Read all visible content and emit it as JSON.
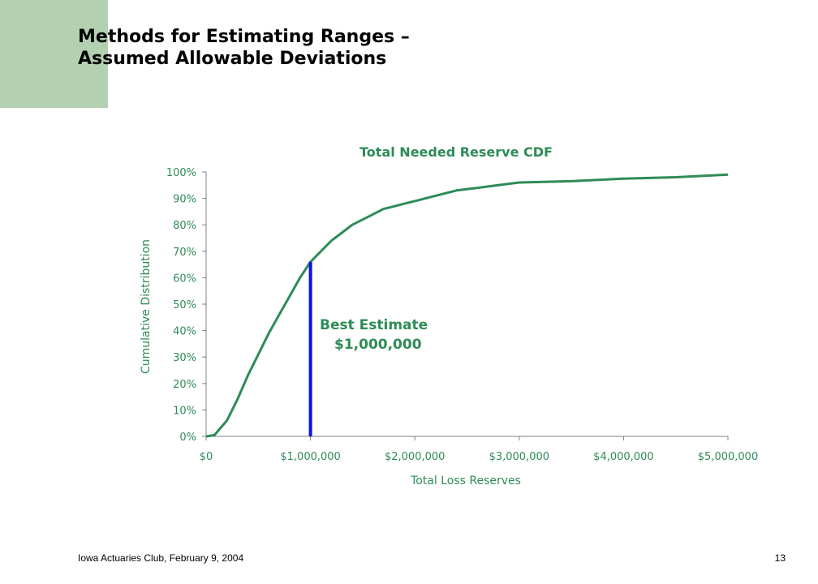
{
  "slide": {
    "title_line1": "Methods for Estimating Ranges –",
    "title_line2": "Assumed Allowable Deviations",
    "footer_left": "Iowa Actuaries Club, February 9, 2004",
    "page_number": "13"
  },
  "colors": {
    "accent_block": "#b3d1b0",
    "chart_text": "#2e8b57",
    "cdf_line": "#2e8b57",
    "estimate_line": "#1010e0",
    "axis": "#808080"
  },
  "chart_data": {
    "type": "line",
    "title": "Total Needed Reserve CDF",
    "xlabel": "Total Loss Reserves",
    "ylabel": "Cumulative Distribution",
    "xlim": [
      0,
      5000000
    ],
    "ylim": [
      0,
      1
    ],
    "x_ticks": [
      0,
      1000000,
      2000000,
      3000000,
      4000000,
      5000000
    ],
    "x_tick_labels": [
      "$0",
      "$1,000,000",
      "$2,000,000",
      "$3,000,000",
      "$4,000,000",
      "$5,000,000"
    ],
    "y_ticks": [
      0,
      0.1,
      0.2,
      0.3,
      0.4,
      0.5,
      0.6,
      0.7,
      0.8,
      0.9,
      1.0
    ],
    "y_tick_labels": [
      "0%",
      "10%",
      "20%",
      "30%",
      "40%",
      "50%",
      "60%",
      "70%",
      "80%",
      "90%",
      "100%"
    ],
    "grid": false,
    "legend": "none",
    "series": [
      {
        "x": [
          0,
          80000,
          200000,
          300000,
          400000,
          500000,
          600000,
          700000,
          800000,
          900000,
          1000000,
          1100000,
          1200000,
          1300000,
          1400000,
          1500000,
          1600000,
          1700000,
          1800000,
          1900000,
          2000000,
          2200000,
          2400000,
          2600000,
          2800000,
          3000000,
          3500000,
          4000000,
          4500000,
          5000000
        ],
        "y": [
          0.0,
          0.005,
          0.06,
          0.14,
          0.23,
          0.31,
          0.39,
          0.46,
          0.53,
          0.6,
          0.66,
          0.7,
          0.74,
          0.77,
          0.8,
          0.82,
          0.84,
          0.86,
          0.87,
          0.88,
          0.89,
          0.91,
          0.93,
          0.94,
          0.95,
          0.96,
          0.965,
          0.975,
          0.98,
          0.99
        ]
      }
    ],
    "annotation": {
      "x": 1000000,
      "y": 0.66,
      "label_line1": "Best Estimate",
      "label_line2": "$1,000,000"
    }
  }
}
